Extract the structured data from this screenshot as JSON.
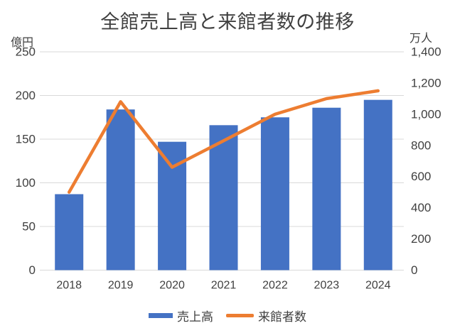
{
  "title": "全館売上高と来館者数の推移",
  "left_axis_unit": "億円",
  "right_axis_unit": "万人",
  "legend": {
    "items": [
      {
        "label": "売上高",
        "marker": "rect",
        "color": "#4472C4"
      },
      {
        "label": "来館者数",
        "marker": "line",
        "color": "#ED7D31"
      }
    ]
  },
  "colors": {
    "bar": "#4472C4",
    "line": "#ED7D31",
    "grid": "#D9D9D9",
    "text": "#404040",
    "background": "#FFFFFF"
  },
  "chart_data": {
    "type": "bar",
    "subtype": "combo-bar-line-dual-axis",
    "title": "全館売上高と来館者数の推移",
    "categories": [
      "2018",
      "2019",
      "2020",
      "2021",
      "2022",
      "2023",
      "2024"
    ],
    "series": [
      {
        "name": "売上高",
        "chart": "bar",
        "axis": "left",
        "unit": "億円",
        "color": "#4472C4",
        "values": [
          87,
          184,
          147,
          166,
          175,
          186,
          195
        ]
      },
      {
        "name": "来館者数",
        "chart": "line",
        "axis": "right",
        "unit": "万人",
        "color": "#ED7D31",
        "values": [
          500,
          1080,
          660,
          830,
          1000,
          1100,
          1150
        ]
      }
    ],
    "left_axis": {
      "unit": "億円",
      "min": 0,
      "max": 250,
      "step": 50,
      "ticks": [
        "250",
        "200",
        "150",
        "100",
        "50",
        "0"
      ]
    },
    "right_axis": {
      "unit": "万人",
      "min": 0,
      "max": 1400,
      "step": 200,
      "ticks": [
        "1,400",
        "1,200",
        "1,000",
        "800",
        "600",
        "400",
        "200",
        "0"
      ]
    },
    "grid": true,
    "legend_position": "bottom"
  }
}
